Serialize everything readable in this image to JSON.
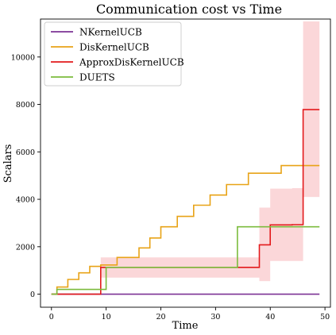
{
  "chart_data": {
    "type": "line",
    "title": "Communication cost vs Time",
    "xlabel": "Time",
    "ylabel": "Scalars",
    "xlim": [
      -2,
      51
    ],
    "ylim": [
      -550,
      11600
    ],
    "xticks": [
      0,
      10,
      20,
      30,
      40,
      50
    ],
    "yticks": [
      0,
      2000,
      4000,
      6000,
      8000,
      10000
    ],
    "legend": "top-left",
    "grid": false,
    "series": [
      {
        "name": "NKernelUCB",
        "color": "#7b3294",
        "step": false,
        "points": [
          [
            0,
            0
          ],
          [
            49,
            0
          ]
        ]
      },
      {
        "name": "DisKernelUCB",
        "color": "#e8a317",
        "step": true,
        "points": [
          [
            0,
            0
          ],
          [
            1,
            0
          ],
          [
            1,
            300
          ],
          [
            2,
            300
          ],
          [
            3,
            300
          ],
          [
            3,
            620
          ],
          [
            4,
            620
          ],
          [
            5,
            620
          ],
          [
            5,
            900
          ],
          [
            6,
            900
          ],
          [
            7,
            900
          ],
          [
            7,
            1170
          ],
          [
            8,
            1170
          ],
          [
            9,
            1170
          ],
          [
            9,
            1230
          ],
          [
            12,
            1230
          ],
          [
            12,
            1550
          ],
          [
            16,
            1550
          ],
          [
            16,
            1950
          ],
          [
            18,
            1950
          ],
          [
            18,
            2370
          ],
          [
            20,
            2370
          ],
          [
            20,
            2840
          ],
          [
            23,
            2840
          ],
          [
            23,
            3280
          ],
          [
            26,
            3280
          ],
          [
            26,
            3750
          ],
          [
            29,
            3750
          ],
          [
            29,
            4180
          ],
          [
            32,
            4180
          ],
          [
            32,
            4620
          ],
          [
            36,
            4620
          ],
          [
            36,
            5100
          ],
          [
            42,
            5100
          ],
          [
            42,
            5420
          ],
          [
            49,
            5420
          ]
        ]
      },
      {
        "name": "ApproxDisKernelUCB",
        "color": "#e31a1c",
        "step": true,
        "points": [
          [
            0,
            0
          ],
          [
            9,
            0
          ],
          [
            9,
            1130
          ],
          [
            38,
            1130
          ],
          [
            38,
            2080
          ],
          [
            40,
            2080
          ],
          [
            40,
            2920
          ],
          [
            44,
            2920
          ],
          [
            44,
            2930
          ],
          [
            46,
            2930
          ],
          [
            46,
            7780
          ],
          [
            49,
            7780
          ]
        ]
      },
      {
        "name": "DUETS",
        "color": "#7cbb3d",
        "step": true,
        "points": [
          [
            0,
            0
          ],
          [
            1,
            0
          ],
          [
            1,
            200
          ],
          [
            10,
            200
          ],
          [
            10,
            1130
          ],
          [
            34,
            1130
          ],
          [
            34,
            2840
          ],
          [
            49,
            2840
          ]
        ]
      }
    ],
    "band": {
      "series": "ApproxDisKernelUCB",
      "color": "#f7b6b9",
      "upper": [
        [
          9,
          0
        ],
        [
          9,
          1550
        ],
        [
          38,
          1550
        ],
        [
          38,
          3650
        ],
        [
          40,
          3650
        ],
        [
          40,
          4450
        ],
        [
          44,
          4450
        ],
        [
          44,
          4470
        ],
        [
          46,
          4470
        ],
        [
          46,
          11500
        ],
        [
          49,
          11500
        ]
      ],
      "lower": [
        [
          9,
          0
        ],
        [
          9,
          700
        ],
        [
          38,
          700
        ],
        [
          38,
          550
        ],
        [
          40,
          550
        ],
        [
          40,
          1400
        ],
        [
          44,
          1400
        ],
        [
          44,
          1400
        ],
        [
          46,
          1400
        ],
        [
          46,
          4100
        ],
        [
          49,
          4100
        ]
      ]
    }
  }
}
